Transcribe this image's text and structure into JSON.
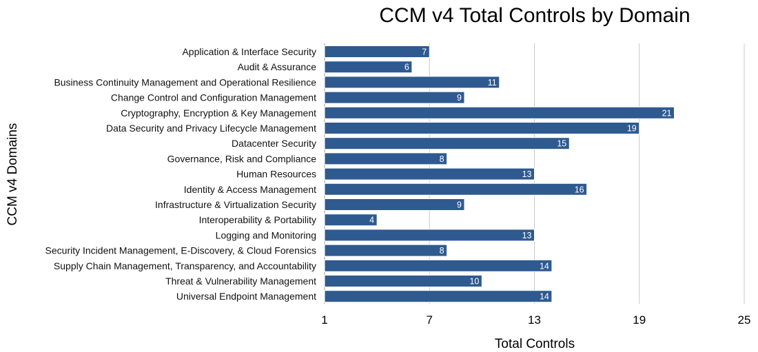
{
  "chart_data": {
    "type": "bar",
    "orientation": "horizontal",
    "title": "CCM v4 Total Controls by Domain",
    "xlabel": "Total Controls",
    "ylabel": "CCM v4 Domains",
    "categories": [
      "Application & Interface Security",
      "Audit & Assurance",
      "Business Continuity Management and Operational Resilience",
      "Change Control and Configuration Management",
      "Cryptography, Encryption & Key Management",
      "Data Security and Privacy Lifecycle Management",
      "Datacenter Security",
      "Governance, Risk and Compliance",
      "Human Resources",
      "Identity & Access Management",
      "Infrastructure & Virtualization Security",
      "Interoperability & Portability",
      "Logging and Monitoring",
      "Security Incident Management, E-Discovery, & Cloud Forensics",
      "Supply Chain Management, Transparency, and Accountability",
      "Threat & Vulnerability Management",
      "Universal Endpoint Management"
    ],
    "values": [
      7,
      6,
      11,
      9,
      21,
      19,
      15,
      8,
      13,
      16,
      9,
      4,
      13,
      8,
      14,
      10,
      14
    ],
    "xlim": [
      1,
      25
    ],
    "xticks": [
      "1",
      "7",
      "13",
      "19",
      "25"
    ],
    "grid": true,
    "legend": "none",
    "bar_color": "#2f5a8f"
  }
}
